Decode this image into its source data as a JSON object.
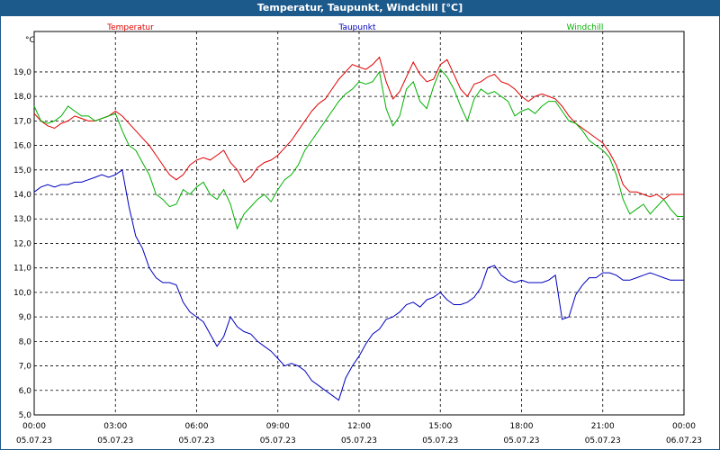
{
  "chart_data": {
    "type": "line",
    "title": "Temperatur, Taupunkt, Windchill [°C]",
    "ylabel": "°C",
    "ylim": [
      5.0,
      20.0
    ],
    "yticks": [
      "5,0",
      "6,0",
      "7,0",
      "8,0",
      "9,0",
      "10,0",
      "11,0",
      "12,0",
      "13,0",
      "14,0",
      "15,0",
      "16,0",
      "17,0",
      "18,0",
      "19,0"
    ],
    "xlim": [
      0,
      24
    ],
    "xticks": [
      {
        "value": 0,
        "time": "00:00",
        "date": "05.07.23"
      },
      {
        "value": 3,
        "time": "03:00",
        "date": "05.07.23"
      },
      {
        "value": 6,
        "time": "06:00",
        "date": "05.07.23"
      },
      {
        "value": 9,
        "time": "09:00",
        "date": "05.07.23"
      },
      {
        "value": 12,
        "time": "12:00",
        "date": "05.07.23"
      },
      {
        "value": 15,
        "time": "15:00",
        "date": "05.07.23"
      },
      {
        "value": 18,
        "time": "18:00",
        "date": "05.07.23"
      },
      {
        "value": 21,
        "time": "21:00",
        "date": "05.07.23"
      },
      {
        "value": 24,
        "time": "00:00",
        "date": "06.07.23"
      }
    ],
    "series": [
      {
        "name": "Temperatur",
        "color": "#e00000",
        "x": [
          0,
          0.25,
          0.5,
          0.75,
          1,
          1.25,
          1.5,
          1.75,
          2,
          2.25,
          2.5,
          2.75,
          3,
          3.25,
          3.5,
          3.75,
          4,
          4.25,
          4.5,
          4.75,
          5,
          5.25,
          5.5,
          5.75,
          6,
          6.25,
          6.5,
          6.75,
          7,
          7.25,
          7.5,
          7.75,
          8,
          8.25,
          8.5,
          8.75,
          9,
          9.25,
          9.5,
          9.75,
          10,
          10.25,
          10.5,
          10.75,
          11,
          11.25,
          11.5,
          11.75,
          12,
          12.25,
          12.5,
          12.75,
          13,
          13.25,
          13.5,
          13.75,
          14,
          14.25,
          14.5,
          14.75,
          15,
          15.25,
          15.5,
          15.75,
          16,
          16.25,
          16.5,
          16.75,
          17,
          17.25,
          17.5,
          17.75,
          18,
          18.25,
          18.5,
          18.75,
          19,
          19.25,
          19.5,
          19.75,
          20,
          20.25,
          20.5,
          20.75,
          21,
          21.25,
          21.5,
          21.75,
          22,
          22.25,
          22.5,
          22.75,
          23,
          23.25,
          23.5,
          23.75,
          24
        ],
        "values": [
          17.3,
          17.0,
          16.8,
          16.7,
          16.9,
          17.0,
          17.2,
          17.1,
          17.0,
          17.0,
          17.1,
          17.2,
          17.4,
          17.2,
          16.9,
          16.6,
          16.3,
          16.0,
          15.6,
          15.2,
          14.8,
          14.6,
          14.8,
          15.2,
          15.4,
          15.5,
          15.4,
          15.6,
          15.8,
          15.3,
          15.0,
          14.5,
          14.7,
          15.1,
          15.3,
          15.4,
          15.6,
          15.9,
          16.2,
          16.6,
          17.0,
          17.4,
          17.7,
          17.9,
          18.3,
          18.7,
          19.0,
          19.3,
          19.2,
          19.1,
          19.3,
          19.6,
          18.6,
          17.9,
          18.2,
          18.8,
          19.4,
          18.9,
          18.6,
          18.7,
          19.3,
          19.5,
          18.9,
          18.3,
          18.0,
          18.5,
          18.6,
          18.8,
          18.9,
          18.6,
          18.5,
          18.3,
          18.0,
          17.8,
          18.0,
          18.1,
          18.0,
          17.9,
          17.6,
          17.2,
          16.9,
          16.7,
          16.5,
          16.3,
          16.1,
          15.7,
          15.2,
          14.4,
          14.1,
          14.1,
          14.0,
          13.9,
          14.0,
          13.8,
          14.0,
          14.0,
          14.0
        ],
        "legend_label": "Temperatur"
      },
      {
        "name": "Taupunkt",
        "color": "#0000c0",
        "x": [
          0,
          0.25,
          0.5,
          0.75,
          1,
          1.25,
          1.5,
          1.75,
          2,
          2.25,
          2.5,
          2.75,
          3,
          3.25,
          3.5,
          3.75,
          4,
          4.25,
          4.5,
          4.75,
          5,
          5.25,
          5.5,
          5.75,
          6,
          6.25,
          6.5,
          6.75,
          7,
          7.25,
          7.5,
          7.75,
          8,
          8.25,
          8.5,
          8.75,
          9,
          9.25,
          9.5,
          9.75,
          10,
          10.25,
          10.5,
          10.75,
          11,
          11.25,
          11.5,
          11.75,
          12,
          12.25,
          12.5,
          12.75,
          13,
          13.25,
          13.5,
          13.75,
          14,
          14.25,
          14.5,
          14.75,
          15,
          15.25,
          15.5,
          15.75,
          16,
          16.25,
          16.5,
          16.75,
          17,
          17.25,
          17.5,
          17.75,
          18,
          18.25,
          18.5,
          18.75,
          19,
          19.25,
          19.5,
          19.75,
          20,
          20.25,
          20.5,
          20.75,
          21,
          21.25,
          21.5,
          21.75,
          22,
          22.25,
          22.5,
          22.75,
          23,
          23.25,
          23.5,
          23.75,
          24
        ],
        "values": [
          14.1,
          14.3,
          14.4,
          14.3,
          14.4,
          14.4,
          14.5,
          14.5,
          14.6,
          14.7,
          14.8,
          14.7,
          14.8,
          15.0,
          13.5,
          12.3,
          11.8,
          11.0,
          10.6,
          10.4,
          10.4,
          10.3,
          9.6,
          9.2,
          9.0,
          8.8,
          8.3,
          7.8,
          8.2,
          9.0,
          8.6,
          8.4,
          8.3,
          8.0,
          7.8,
          7.6,
          7.3,
          7.0,
          7.1,
          7.0,
          6.8,
          6.4,
          6.2,
          6.0,
          5.8,
          5.6,
          6.5,
          7.0,
          7.4,
          7.9,
          8.3,
          8.5,
          8.9,
          9.0,
          9.2,
          9.5,
          9.6,
          9.4,
          9.7,
          9.8,
          10.0,
          9.7,
          9.5,
          9.5,
          9.6,
          9.8,
          10.2,
          11.0,
          11.1,
          10.7,
          10.5,
          10.4,
          10.5,
          10.4,
          10.4,
          10.4,
          10.5,
          10.7,
          8.9,
          9.0,
          9.9,
          10.3,
          10.6,
          10.6,
          10.8,
          10.8,
          10.7,
          10.5,
          10.5,
          10.6,
          10.7,
          10.8,
          10.7,
          10.6,
          10.5,
          10.5,
          10.5
        ],
        "legend_label": "Taupunkt"
      },
      {
        "name": "Windchill",
        "color": "#00b000",
        "x": [
          0,
          0.25,
          0.5,
          0.75,
          1,
          1.25,
          1.5,
          1.75,
          2,
          2.25,
          2.5,
          2.75,
          3,
          3.25,
          3.5,
          3.75,
          4,
          4.25,
          4.5,
          4.75,
          5,
          5.25,
          5.5,
          5.75,
          6,
          6.25,
          6.5,
          6.75,
          7,
          7.25,
          7.5,
          7.75,
          8,
          8.25,
          8.5,
          8.75,
          9,
          9.25,
          9.5,
          9.75,
          10,
          10.25,
          10.5,
          10.75,
          11,
          11.25,
          11.5,
          11.75,
          12,
          12.25,
          12.5,
          12.75,
          13,
          13.25,
          13.5,
          13.75,
          14,
          14.25,
          14.5,
          14.75,
          15,
          15.25,
          15.5,
          15.75,
          16,
          16.25,
          16.5,
          16.75,
          17,
          17.25,
          17.5,
          17.75,
          18,
          18.25,
          18.5,
          18.75,
          19,
          19.25,
          19.5,
          19.75,
          20,
          20.25,
          20.5,
          20.75,
          21,
          21.25,
          21.5,
          21.75,
          22,
          22.25,
          22.5,
          22.75,
          23,
          23.25,
          23.5,
          23.75,
          24
        ],
        "values": [
          17.6,
          17.0,
          16.9,
          17.0,
          17.2,
          17.6,
          17.4,
          17.2,
          17.2,
          17.0,
          17.1,
          17.2,
          17.3,
          16.6,
          16.0,
          15.8,
          15.3,
          14.8,
          14.0,
          13.8,
          13.5,
          13.6,
          14.2,
          14.0,
          14.3,
          14.5,
          14.0,
          13.8,
          14.2,
          13.6,
          12.6,
          13.2,
          13.5,
          13.8,
          14.0,
          13.7,
          14.2,
          14.6,
          14.8,
          15.2,
          15.8,
          16.2,
          16.6,
          17.0,
          17.4,
          17.8,
          18.1,
          18.3,
          18.6,
          18.5,
          18.6,
          19.0,
          17.5,
          16.8,
          17.2,
          18.3,
          18.6,
          17.8,
          17.5,
          18.4,
          19.1,
          18.8,
          18.3,
          17.6,
          17.0,
          17.9,
          18.3,
          18.1,
          18.2,
          18.0,
          17.8,
          17.2,
          17.4,
          17.5,
          17.3,
          17.6,
          17.8,
          17.8,
          17.4,
          17.0,
          16.9,
          16.6,
          16.2,
          16.0,
          15.8,
          15.5,
          14.8,
          13.8,
          13.2,
          13.4,
          13.6,
          13.2,
          13.5,
          13.8,
          13.4,
          13.1,
          13.1
        ],
        "legend_label": "Windchill"
      }
    ]
  }
}
